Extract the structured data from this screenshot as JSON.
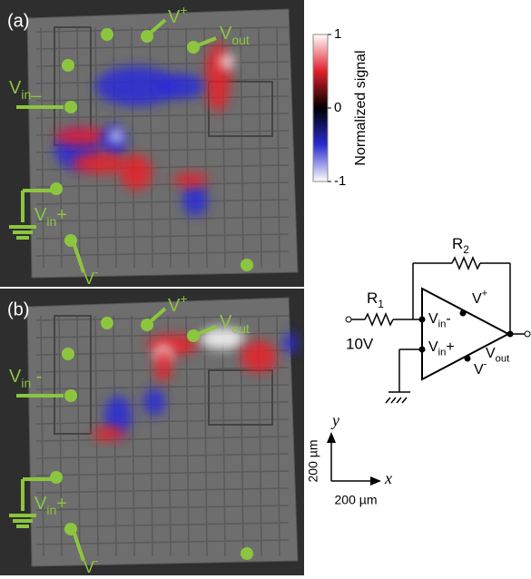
{
  "panels": [
    {
      "label": "(a)",
      "v_plus": {
        "base": "V",
        "sup": "+"
      },
      "v_out": {
        "base": "V",
        "sub": "out"
      },
      "v_in_minus": {
        "base": "V",
        "sub": "in",
        "suffix": "_"
      },
      "v_in_plus": {
        "base": "V",
        "sub": "in",
        "suffix": "+"
      },
      "v_minus": {
        "base": "V",
        "sup": "-"
      }
    },
    {
      "label": "(b)",
      "v_plus": {
        "base": "V",
        "sup": "+"
      },
      "v_out": {
        "base": "V",
        "sub": "out"
      },
      "v_in_minus": {
        "base": "V",
        "sub": "in",
        "suffix": " -"
      },
      "v_in_plus": {
        "base": "V",
        "sub": "in",
        "suffix": "+"
      },
      "v_minus": {
        "base": "V",
        "sup": "-"
      }
    }
  ],
  "colorbar": {
    "title": "Normalized signal",
    "ticks": [
      1,
      0,
      -1
    ]
  },
  "circuit": {
    "r1": {
      "base": "R",
      "sub": "1"
    },
    "r2": {
      "base": "R",
      "sub": "2"
    },
    "input": "10V",
    "v_in_minus": {
      "base": "V",
      "sub": "in",
      "suffix": "-"
    },
    "v_in_plus": {
      "base": "V",
      "sub": "in",
      "suffix": "+"
    },
    "v_plus": {
      "base": "V",
      "sup": "+"
    },
    "v_minus": {
      "base": "V",
      "sup": "-"
    },
    "v_out": {
      "base": "V",
      "sub": "out"
    }
  },
  "scale_bar": {
    "y_axis": "y",
    "x_axis": "x",
    "y_length": "200 µm",
    "x_length": "200 µm"
  }
}
